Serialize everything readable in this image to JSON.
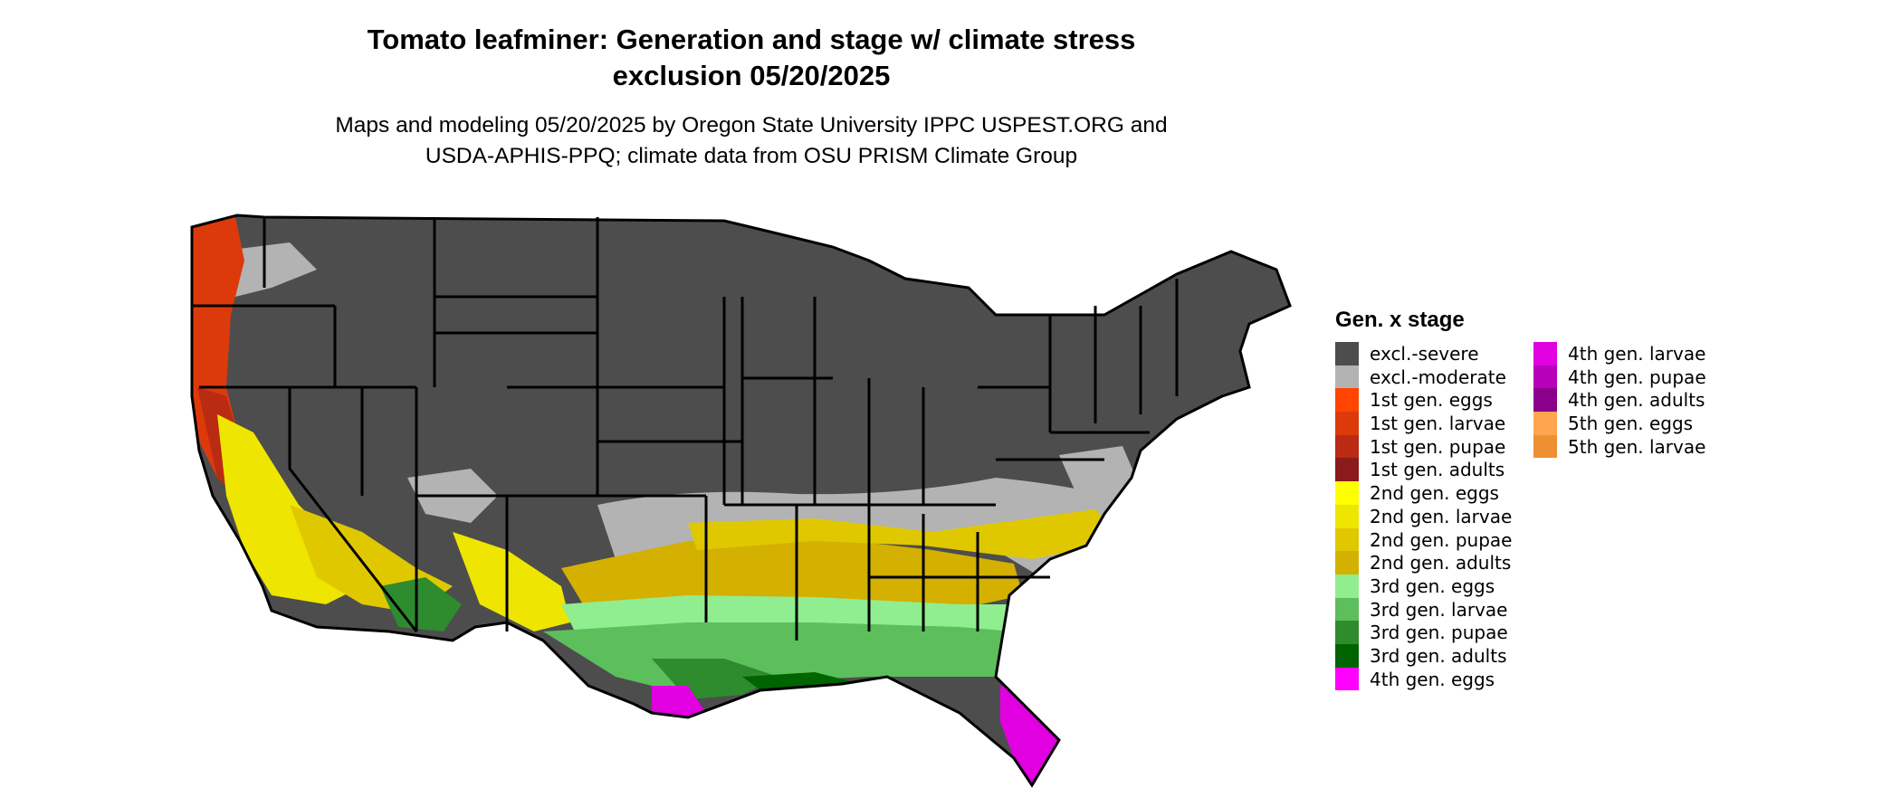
{
  "title_line1": "Tomato leafminer: Generation and stage w/ climate stress",
  "title_line2": "exclusion 05/20/2025",
  "subtitle_line1": "Maps and modeling 05/20/2025 by Oregon State University IPPC USPEST.ORG and",
  "subtitle_line2": "USDA-APHIS-PPQ; climate data from OSU PRISM Climate Group",
  "map": {
    "region": "Contiguous United States",
    "boundaries": "state borders",
    "colors": {
      "land": "#4d4d4d",
      "boundary": "#000000"
    }
  },
  "legend": {
    "title": "Gen. x stage",
    "column1": [
      {
        "label": "excl.-severe",
        "color": "#4d4d4d"
      },
      {
        "label": "excl.-moderate",
        "color": "#b3b3b3"
      },
      {
        "label": "1st gen. eggs",
        "color": "#ff4500"
      },
      {
        "label": "1st gen. larvae",
        "color": "#dd3a0b"
      },
      {
        "label": "1st gen. pupae",
        "color": "#bb2a12"
      },
      {
        "label": "1st gen. adults",
        "color": "#8b1a1a"
      },
      {
        "label": "2nd gen. eggs",
        "color": "#ffff00"
      },
      {
        "label": "2nd gen. larvae",
        "color": "#eee600"
      },
      {
        "label": "2nd gen. pupae",
        "color": "#e0c800"
      },
      {
        "label": "2nd gen. adults",
        "color": "#d4b000"
      },
      {
        "label": "3rd gen. eggs",
        "color": "#90ee90"
      },
      {
        "label": "3rd gen. larvae",
        "color": "#5cbf5c"
      },
      {
        "label": "3rd gen. pupae",
        "color": "#2e8b2e"
      },
      {
        "label": "3rd gen. adults",
        "color": "#006400"
      },
      {
        "label": "4th gen. eggs",
        "color": "#ff00ff"
      }
    ],
    "column2": [
      {
        "label": "4th gen. larvae",
        "color": "#e000e0"
      },
      {
        "label": "4th gen. pupae",
        "color": "#b800b8"
      },
      {
        "label": "4th gen. adults",
        "color": "#8b008b"
      },
      {
        "label": "5th gen. eggs",
        "color": "#ffa54f"
      },
      {
        "label": "5th gen. larvae",
        "color": "#ee9032"
      }
    ]
  }
}
